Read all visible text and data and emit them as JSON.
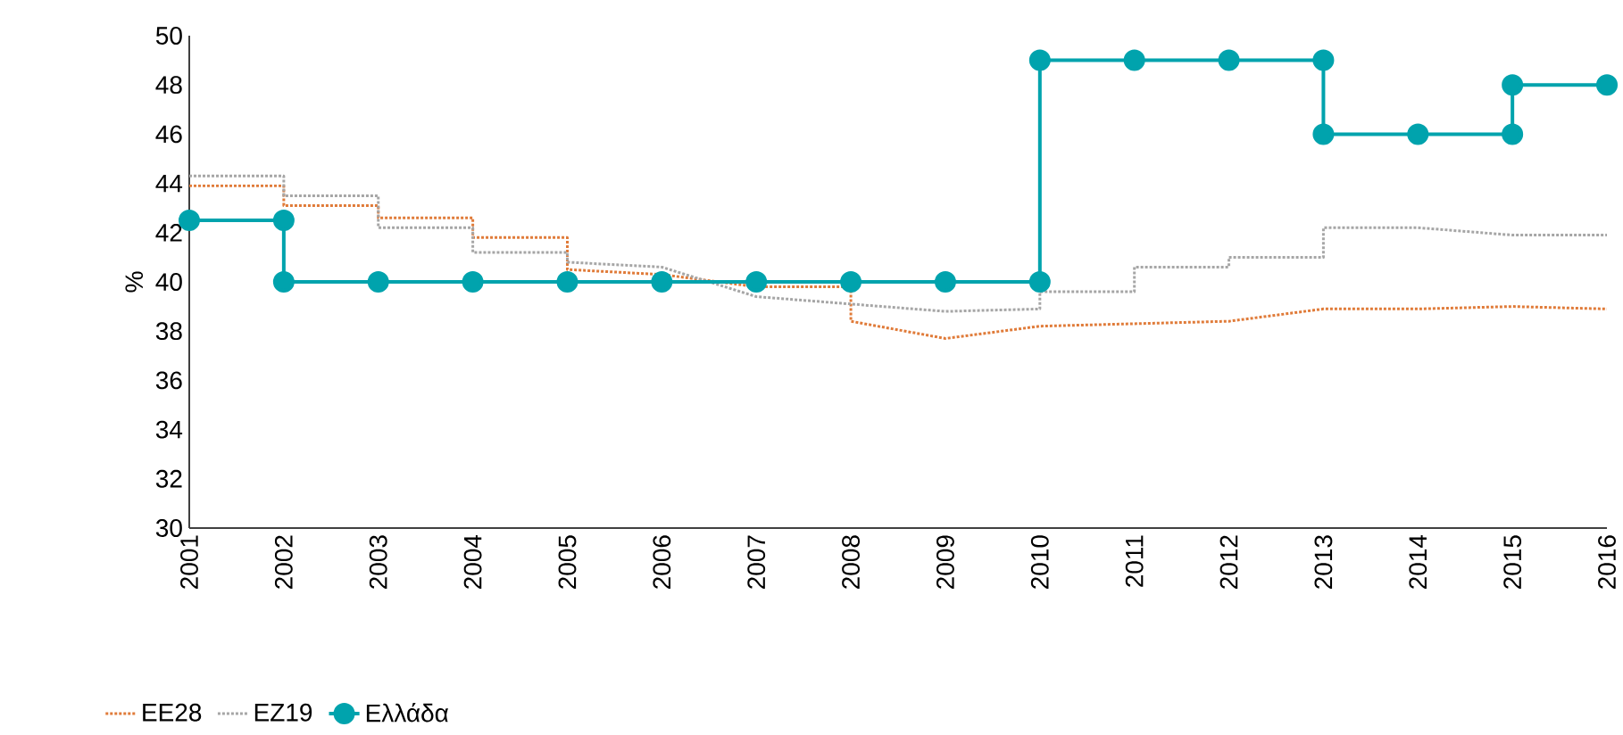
{
  "chart_data": {
    "type": "line",
    "ylabel": "%",
    "xlim": [
      2001,
      2016
    ],
    "ylim": [
      30,
      50
    ],
    "xticks": [
      2001,
      2002,
      2003,
      2004,
      2005,
      2006,
      2007,
      2008,
      2009,
      2010,
      2011,
      2012,
      2013,
      2014,
      2015,
      2016
    ],
    "yticks": [
      30,
      32,
      34,
      36,
      38,
      40,
      42,
      44,
      46,
      48,
      50
    ],
    "grid": false,
    "legend": "bottom left",
    "series": [
      {
        "name": "ΕΕ28",
        "color": "#e07b39",
        "line_style": "dotted",
        "marker": "none",
        "x": [
          2001,
          2002,
          2002,
          2003,
          2003,
          2004,
          2004,
          2005,
          2005,
          2006,
          2007,
          2008,
          2008,
          2009,
          2010,
          2011,
          2012,
          2013,
          2014,
          2015,
          2016
        ],
        "values": [
          43.9,
          43.9,
          43.1,
          43.1,
          42.6,
          42.6,
          41.8,
          41.8,
          40.5,
          40.3,
          39.8,
          39.8,
          38.4,
          37.7,
          38.2,
          38.3,
          38.4,
          38.9,
          38.9,
          39.0,
          38.9
        ]
      },
      {
        "name": "ΕΖ19",
        "color": "#a6a6a6",
        "line_style": "dotted",
        "marker": "none",
        "x": [
          2001,
          2002,
          2002,
          2003,
          2003,
          2004,
          2004,
          2005,
          2005,
          2006,
          2007,
          2008,
          2009,
          2010,
          2010,
          2011,
          2011,
          2012,
          2012,
          2013,
          2013,
          2014,
          2015,
          2016
        ],
        "values": [
          44.3,
          44.3,
          43.5,
          43.5,
          42.2,
          42.2,
          41.2,
          41.2,
          40.8,
          40.6,
          39.4,
          39.1,
          38.8,
          38.9,
          39.6,
          39.6,
          40.6,
          40.6,
          41.0,
          41.0,
          42.2,
          42.2,
          41.9,
          41.9
        ]
      },
      {
        "name": "Ελλάδα",
        "color": "#00a3ad",
        "line_style": "solid",
        "marker": "circle",
        "x": [
          2001,
          2002,
          2002,
          2003,
          2004,
          2005,
          2006,
          2007,
          2008,
          2009,
          2010,
          2010,
          2011,
          2012,
          2013,
          2013,
          2014,
          2015,
          2015,
          2016
        ],
        "values": [
          42.5,
          42.5,
          40,
          40,
          40,
          40,
          40,
          40,
          40,
          40,
          40,
          49,
          49,
          49,
          49,
          46,
          46,
          46,
          48,
          48
        ]
      }
    ]
  }
}
